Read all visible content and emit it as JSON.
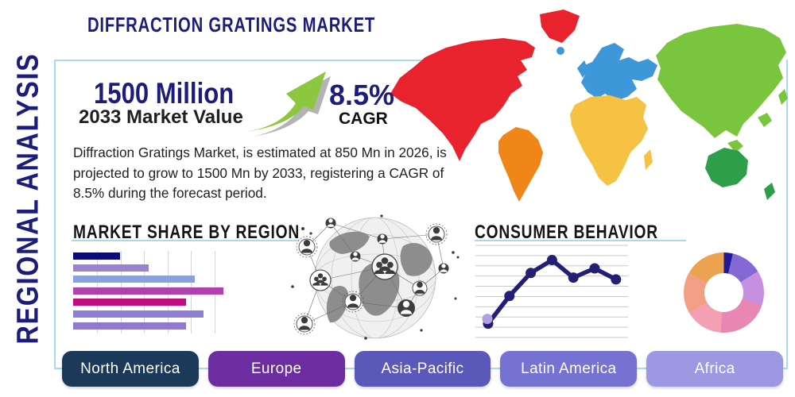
{
  "header": {
    "title": "DIFFRACTION GRATINGS MARKET",
    "side_label": "REGIONAL ANALYSIS"
  },
  "stats": {
    "value": "1500 Million",
    "value_caption": "2033 Market Value",
    "cagr": "8.5%",
    "cagr_caption": "CAGR"
  },
  "description": "Diffraction Gratings Market, is estimated at 850 Mn in 2026, is projected to grow to 1500 Mn by 2033, registering a CAGR of 8.5% during the forecast period.",
  "sections": {
    "market_share_heading": "MARKET SHARE BY REGION",
    "consumer_behavior_heading": "CONSUMER BEHAVIOR"
  },
  "regions": [
    {
      "label": "North America",
      "color": "#1b3a5a"
    },
    {
      "label": "Europe",
      "color": "#6c2da1"
    },
    {
      "label": "Asia-Pacific",
      "color": "#5a58b8"
    },
    {
      "label": "Latin America",
      "color": "#7672d2"
    },
    {
      "label": "Africa",
      "color": "#9c98e2"
    }
  ],
  "colors": {
    "accent_navy": "#1c1c7a",
    "box_border": "#a9d9ea",
    "arrow_green": "#8dc63f",
    "map": {
      "north_america": "#e8232d",
      "south_america": "#f08518",
      "europe": "#3e97d9",
      "africa": "#f6c244",
      "asia": "#79c53e",
      "australia": "#2f9e49"
    }
  },
  "chart_data": [
    {
      "type": "bar",
      "orientation": "horizontal",
      "title": "MARKET SHARE BY REGION",
      "categories": [
        "bar-1",
        "bar-2",
        "bar-3",
        "bar-4",
        "bar-5",
        "bar-6",
        "bar-7"
      ],
      "values": [
        31,
        50,
        81,
        100,
        75,
        87,
        75
      ],
      "value_unit": "relative % of longest bar (axes unlabeled in source)",
      "bar_colors": [
        "#0b0b78",
        "#9b82cf",
        "#87a2e3",
        "#b141ae",
        "#c40a80",
        "#8f7ed6",
        "#9279ce"
      ],
      "grid": "vertical",
      "axis_labels_visible": false
    },
    {
      "type": "line",
      "title": "CONSUMER BEHAVIOR",
      "x": [
        1,
        2,
        3,
        4,
        5,
        6,
        7
      ],
      "values": [
        15,
        45,
        70,
        84,
        65,
        75,
        63
      ],
      "ylim": [
        0,
        100
      ],
      "value_unit": "relative scale (axes unlabeled in source)",
      "line_color": "#232074",
      "marker_color": "#232074",
      "first_marker_highlight": "#b2a0e2",
      "grid": "horizontal",
      "legend": "none"
    },
    {
      "type": "pie",
      "donut": true,
      "values": [
        3.6,
        12.5,
        14.4,
        20.8,
        15.3,
        16.7,
        16.7
      ],
      "value_unit": "percent (slices unlabeled in source)",
      "slice_colors": [
        "#201a96",
        "#8468d4",
        "#c68fdf",
        "#e887b4",
        "#f4a0b4",
        "#f2a085",
        "#eca24f"
      ],
      "start_angle_deg": 0,
      "labels_visible": false
    }
  ]
}
